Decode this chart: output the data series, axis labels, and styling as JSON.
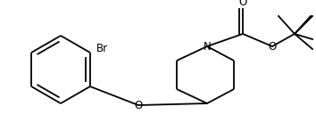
{
  "background": "#ffffff",
  "line_color": "#000000",
  "lw": 1.3,
  "figsize": [
    3.54,
    1.38
  ],
  "dpi": 100,
  "xlim": [
    0,
    354
  ],
  "ylim": [
    0,
    138
  ]
}
